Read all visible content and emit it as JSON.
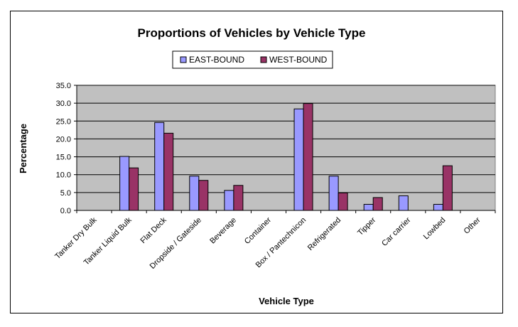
{
  "chart_data": {
    "type": "bar",
    "title": "Proportions of Vehicles by Vehicle Type",
    "xlabel": "Vehicle Type",
    "ylabel": "Percentage",
    "ylim": [
      0,
      35
    ],
    "yticks": [
      "0.0",
      "5.0",
      "10.0",
      "15.0",
      "20.0",
      "25.0",
      "30.0",
      "35.0"
    ],
    "grid": true,
    "legend_position": "top-center",
    "categories": [
      "Tanker Dry Bulk",
      "Tanker Liquid Bulk",
      "Flat Deck",
      "Dropside / Gateside",
      "Beverage",
      "Container",
      "Box / Pantechnicon",
      "Refrigerated",
      "Tipper",
      "Car carrier",
      "Lowbed",
      "Other"
    ],
    "series": [
      {
        "name": "EAST-BOUND",
        "color": "#9999ff",
        "values": [
          0,
          15.1,
          24.6,
          9.6,
          5.6,
          0,
          28.4,
          9.6,
          1.7,
          4.1,
          1.7,
          0
        ]
      },
      {
        "name": "WEST-BOUND",
        "color": "#993366",
        "values": [
          0,
          11.9,
          21.6,
          8.4,
          7.0,
          0,
          29.9,
          4.9,
          3.6,
          0,
          12.5,
          0
        ]
      }
    ],
    "plot_background": "#c0c0c0"
  }
}
